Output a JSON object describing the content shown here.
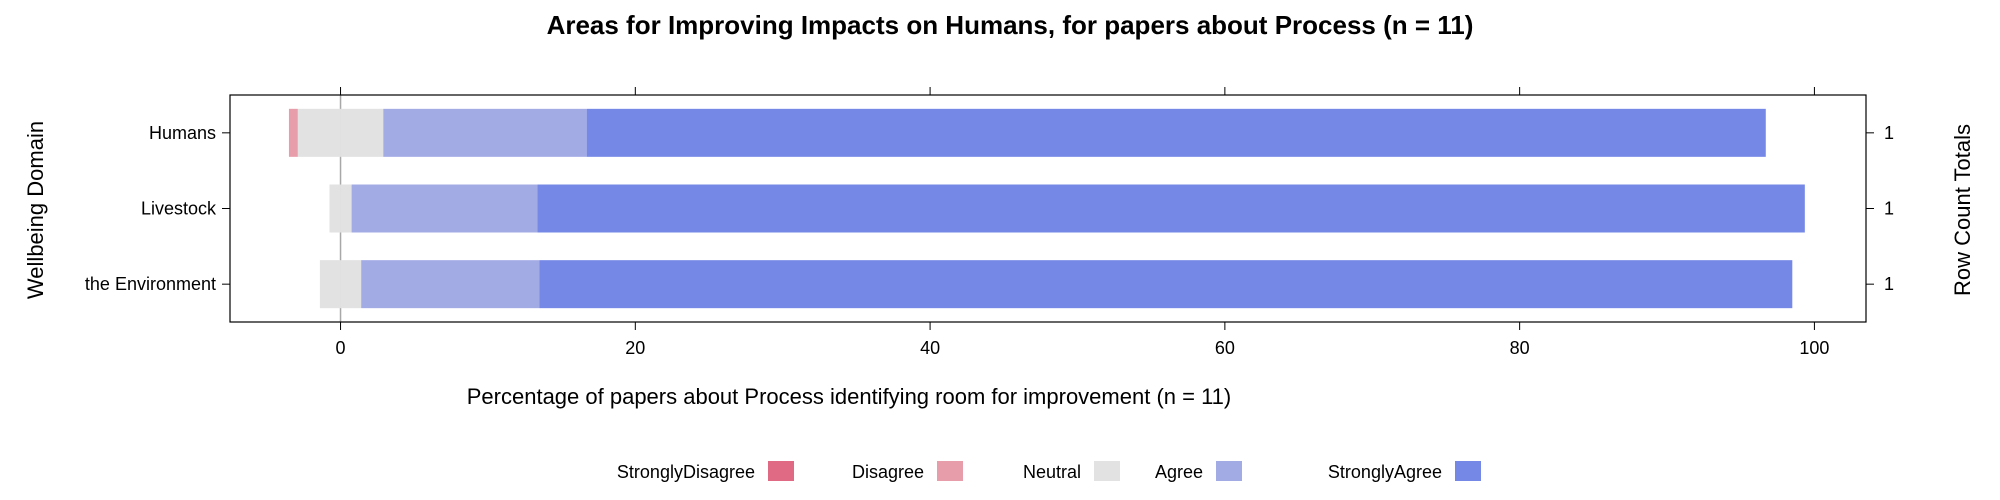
{
  "chart_data": {
    "type": "bar",
    "orientation": "horizontal-diverging",
    "title": "Areas for Improving Impacts on Humans, for papers about Process (n = 11)",
    "xlabel": "Percentage of papers about Process identifying room for improvement (n = 11)",
    "ylabel": "Wellbeing Domain",
    "right_label": "Row Count Totals",
    "xlim": [
      -7.5,
      103.5
    ],
    "xticks": [
      0,
      20,
      40,
      60,
      80,
      100
    ],
    "categories": [
      "Humans",
      "Livestock",
      "the Environment"
    ],
    "row_totals": [
      "1",
      "1",
      "1"
    ],
    "series": [
      {
        "name": "StronglyDisagree",
        "color": "#e06a84",
        "values": [
          0,
          0,
          0
        ]
      },
      {
        "name": "Disagree",
        "color": "#e89dab",
        "values": [
          0.6,
          0,
          0
        ]
      },
      {
        "name": "Neutral",
        "color": "#e2e2e2",
        "values": [
          5.8,
          1.5,
          2.8
        ]
      },
      {
        "name": "Agree",
        "color": "#a3abe5",
        "values": [
          13.8,
          12.6,
          12.1
        ]
      },
      {
        "name": "StronglyAgree",
        "color": "#7688e6",
        "values": [
          80.0,
          86.0,
          85.0
        ]
      }
    ],
    "legend_position": "bottom",
    "grid": false
  }
}
